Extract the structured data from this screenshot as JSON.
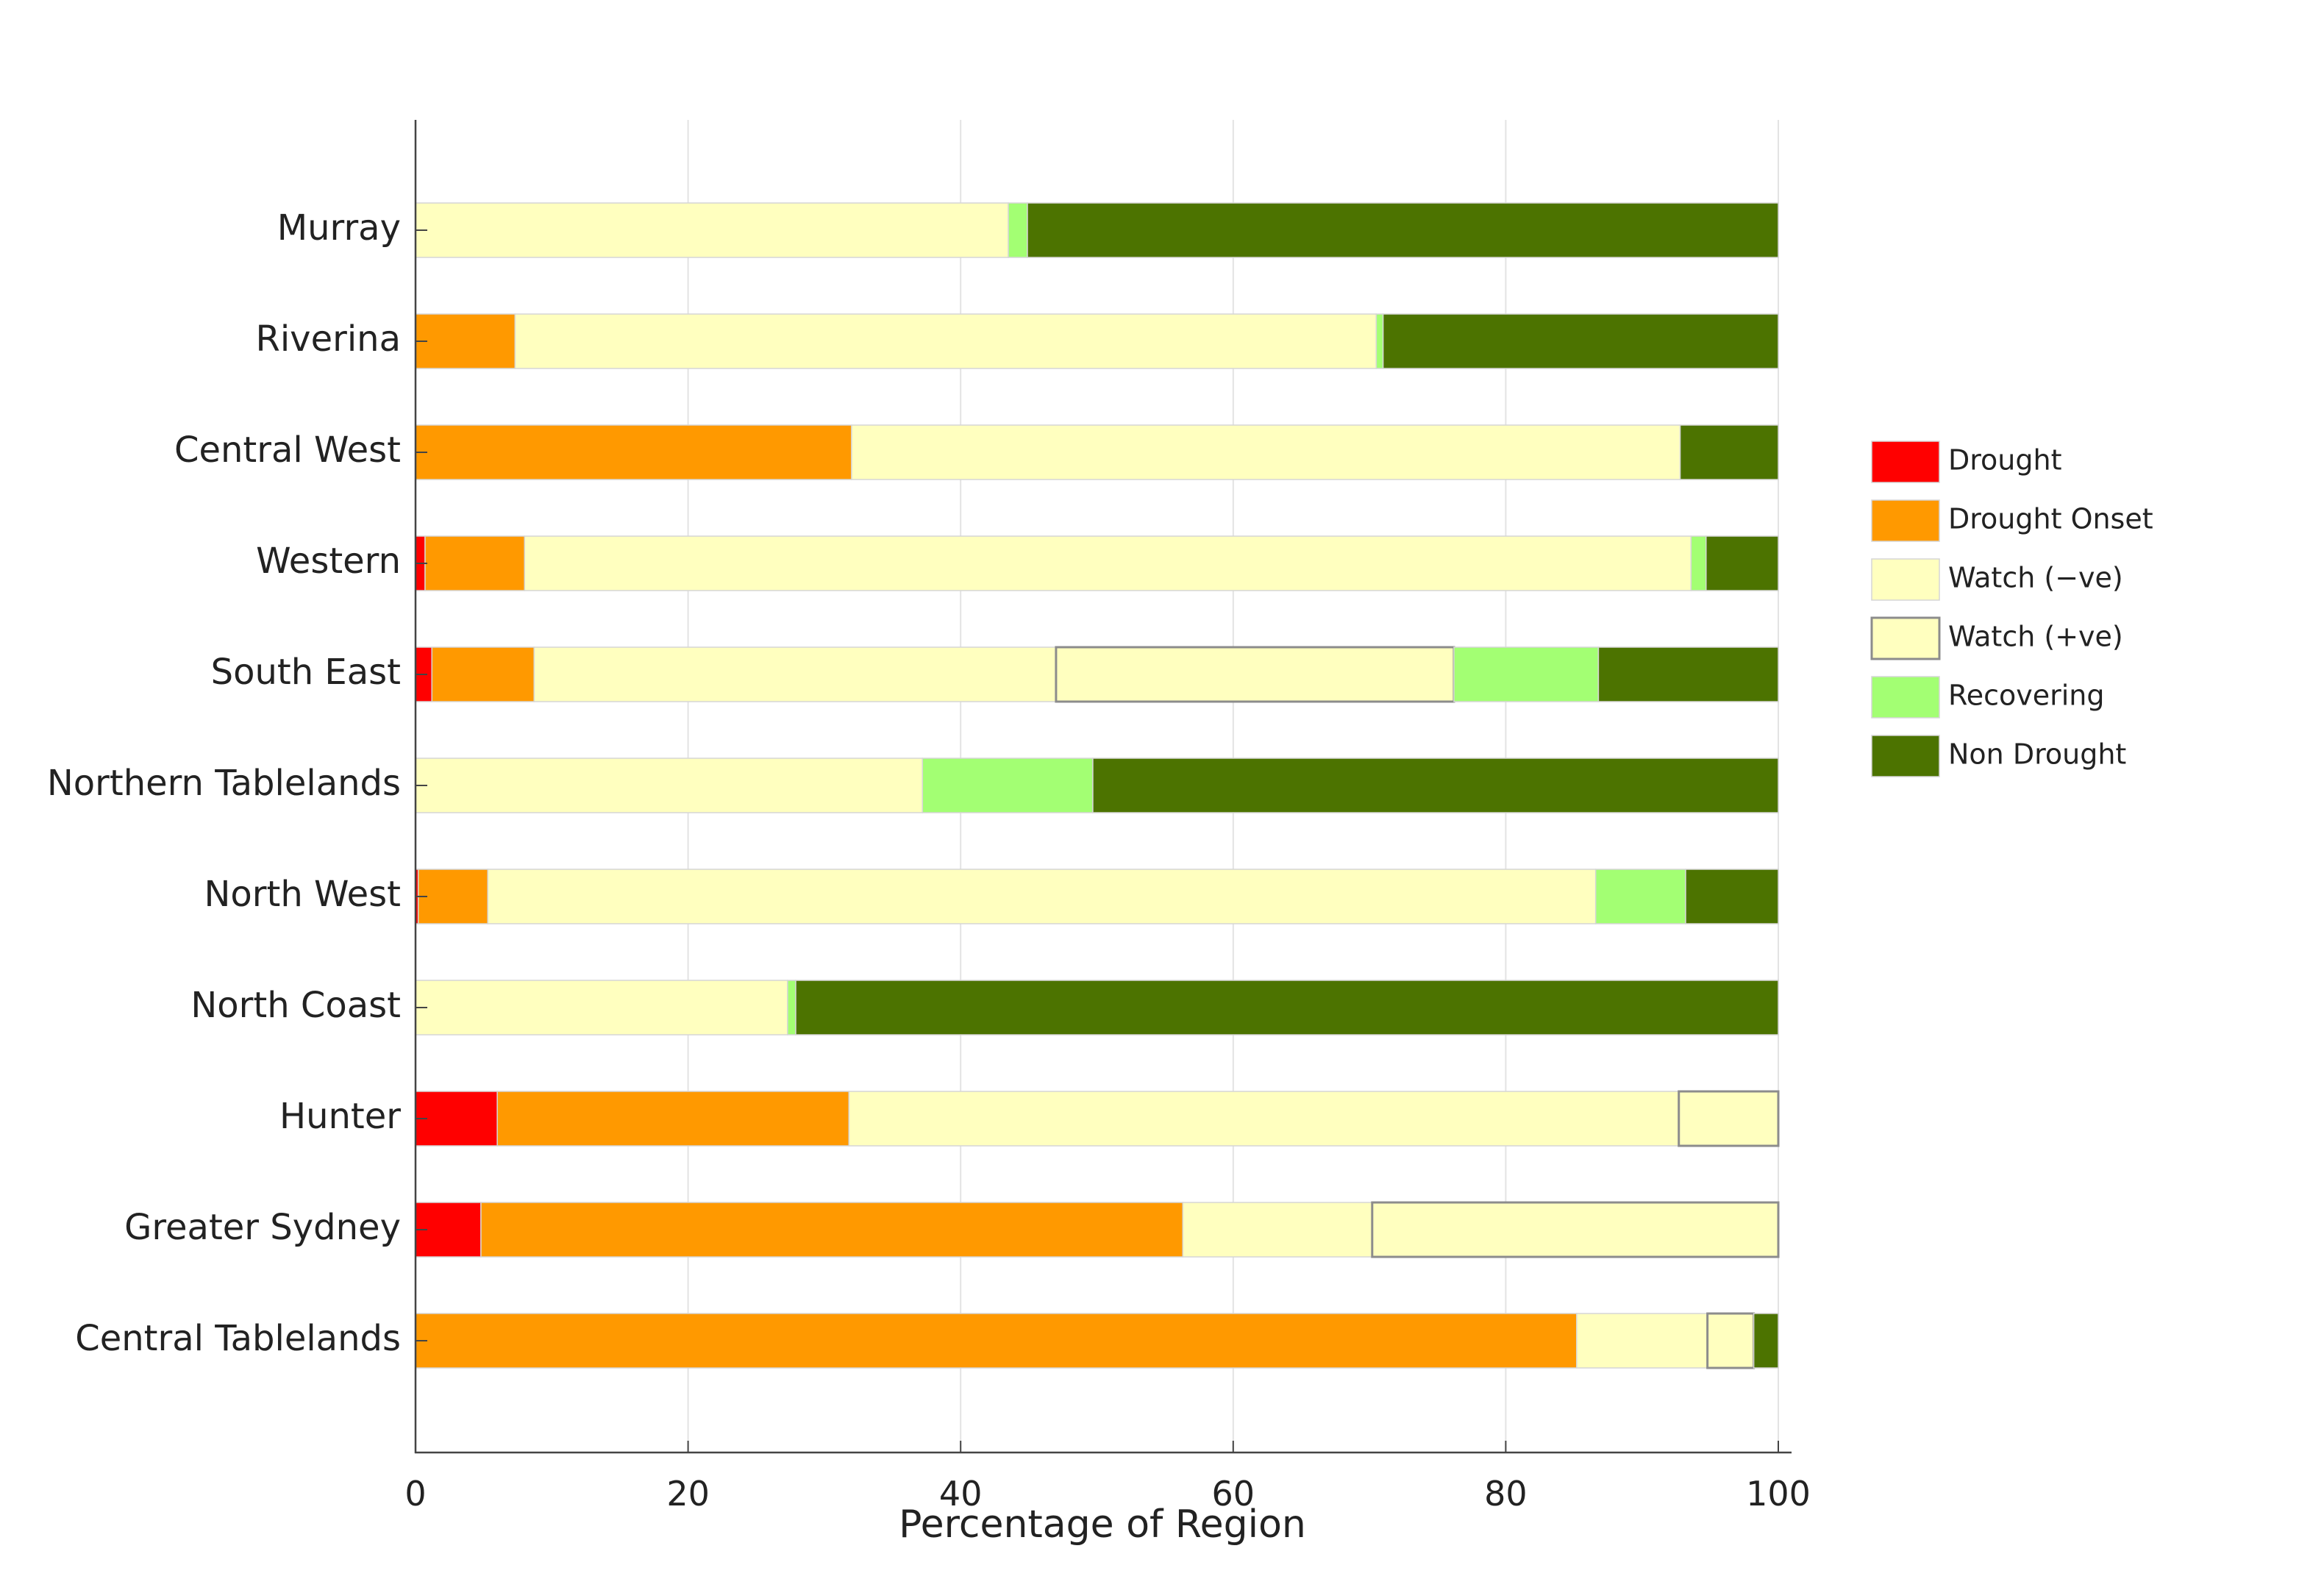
{
  "chart_data": {
    "type": "bar",
    "orientation": "horizontal",
    "stacked": true,
    "title": "",
    "xlabel": "Percentage of Region",
    "ylabel": "",
    "xlim": [
      0,
      100
    ],
    "xticks": [
      "0",
      "20",
      "40",
      "60",
      "80",
      "100"
    ],
    "grid": "vertical",
    "legend_position": "right",
    "categories": [
      "Murray",
      "Riverina",
      "Central West",
      "Western",
      "South East",
      "Northern Tablelands",
      "North West",
      "North Coast",
      "Hunter",
      "Greater Sydney",
      "Central Tablelands"
    ],
    "series": [
      {
        "name": "Drought",
        "color": "#ff0000",
        "outlined": false,
        "values": [
          0,
          0,
          0,
          0.7,
          1.2,
          0,
          0.2,
          0,
          6.0,
          4.8,
          0
        ]
      },
      {
        "name": "Drought Onset",
        "color": "#ff9900",
        "outlined": false,
        "values": [
          0,
          7.3,
          32.0,
          7.3,
          7.5,
          0,
          5.1,
          0,
          25.8,
          51.5,
          85.2
        ]
      },
      {
        "name": "Watch (−ve)",
        "color": "#ffffbf",
        "outlined": false,
        "values": [
          43.5,
          63.2,
          60.8,
          85.6,
          38.3,
          37.2,
          81.3,
          27.3,
          60.9,
          13.9,
          9.6
        ]
      },
      {
        "name": "Watch (+ve)",
        "color": "#ffffbf",
        "outlined": true,
        "values": [
          0,
          0,
          0,
          0,
          29.2,
          0,
          0,
          0,
          7.3,
          29.8,
          3.4
        ]
      },
      {
        "name": "Recovering",
        "color": "#a3ff73",
        "outlined": false,
        "values": [
          1.4,
          0.5,
          0,
          1.1,
          10.6,
          12.5,
          6.6,
          0.6,
          0,
          0,
          0
        ]
      },
      {
        "name": "Non Drought",
        "color": "#4c7300",
        "outlined": false,
        "values": [
          55.1,
          29.0,
          7.2,
          5.3,
          13.2,
          50.3,
          6.8,
          72.1,
          0,
          0,
          1.8
        ]
      }
    ]
  }
}
